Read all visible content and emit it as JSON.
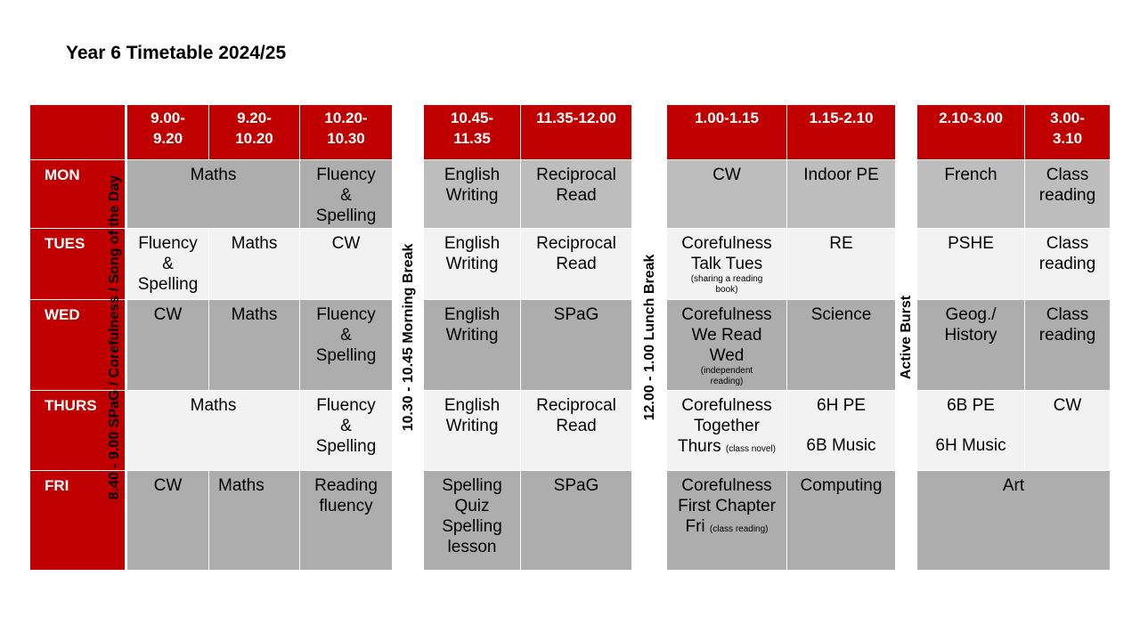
{
  "title": "Year 6 Timetable 2024/25",
  "headers": {
    "h1a": "9.00-",
    "h1b": "9.20",
    "h2a": "9.20-",
    "h2b": "10.20",
    "h3a": "10.20-",
    "h3b": "10.30",
    "h4a": "10.45-",
    "h4b": "11.35",
    "h5": "11.35-12.00",
    "h6": "1.00-1.15",
    "h7": "1.15-2.10",
    "h8": "2.10-3.00",
    "h9a": "3.00-",
    "h9b": "3.10"
  },
  "days": [
    "MON",
    "TUES",
    "WED",
    "THURS",
    "FRI"
  ],
  "breaks": {
    "morning_start": "8.40 - 9.00 SPaG / Corefulness / Song of the Day",
    "morning_break": "10.30 - 10.45 Morning Break",
    "lunch_break": "12.00 - 1.00 Lunch Break",
    "active_burst": "Active Burst"
  },
  "mon": {
    "maths": "Maths",
    "fluency": [
      "Fluency",
      "&",
      "Spelling"
    ],
    "english": [
      "English",
      "Writing"
    ],
    "reciprocal": [
      "Reciprocal",
      "Read"
    ],
    "cw": "CW",
    "pe": "Indoor PE",
    "french": "French",
    "class_reading": [
      "Class",
      "reading"
    ]
  },
  "tues": {
    "fluency": [
      "Fluency",
      "&",
      "Spelling"
    ],
    "maths": "Maths",
    "cw": "CW",
    "english": [
      "English",
      "Writing"
    ],
    "reciprocal": [
      "Reciprocal",
      "Read"
    ],
    "corefulness": [
      "Corefulness",
      "Talk Tues"
    ],
    "corefulness_note": "(sharing a reading book)",
    "re": "RE",
    "pshe": "PSHE",
    "class_reading": [
      "Class",
      "reading"
    ]
  },
  "wed": {
    "cw": "CW",
    "maths": "Maths",
    "fluency": [
      "Fluency",
      "&",
      "Spelling"
    ],
    "english": [
      "English",
      "Writing"
    ],
    "spag": "SPaG",
    "corefulness": [
      "Corefulness",
      "We Read",
      "Wed"
    ],
    "corefulness_note": "(independent reading)",
    "science": "Science",
    "geog": [
      "Geog./",
      "History"
    ],
    "class_reading": [
      "Class",
      "reading"
    ]
  },
  "thurs": {
    "maths": "Maths",
    "fluency": [
      "Fluency",
      "&",
      "Spelling"
    ],
    "english": [
      "English",
      "Writing"
    ],
    "reciprocal": [
      "Reciprocal",
      "Read"
    ],
    "corefulness": [
      "Corefulness",
      "Together"
    ],
    "corefulness_last": "Thurs",
    "corefulness_note": "(class novel)",
    "pe": "6H PE",
    "music": "6B Music",
    "pe2": "6B PE",
    "music2": "6H Music",
    "cw": "CW"
  },
  "fri": {
    "cw": "CW",
    "maths": "Maths",
    "reading": [
      "Reading",
      "fluency"
    ],
    "spelling": [
      "Spelling",
      "Quiz",
      "Spelling",
      "lesson"
    ],
    "spag": "SPaG",
    "corefulness": [
      "Corefulness",
      "First Chapter"
    ],
    "corefulness_last": "Fri",
    "corefulness_note": "(class reading)",
    "computing": "Computing",
    "art": "Art"
  }
}
